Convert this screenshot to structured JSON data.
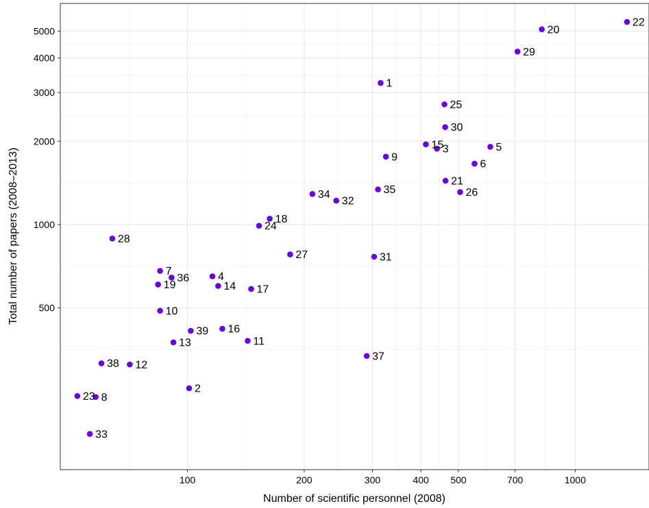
{
  "chart_data": {
    "type": "scatter",
    "title": "",
    "xlabel": "Number of scientific personnel (2008)",
    "ylabel": "Total number of papers (2008–2013)",
    "x_scale": "log",
    "y_scale": "log",
    "xlim": [
      47,
      1550
    ],
    "ylim": [
      130,
      6300
    ],
    "x_ticks": [
      100,
      200,
      300,
      400,
      500,
      700,
      1000
    ],
    "y_ticks": [
      500,
      1000,
      2000,
      3000,
      4000,
      5000
    ],
    "grid": true,
    "point_color": "#6A00E8",
    "points": [
      {
        "label": "1",
        "x": 315,
        "y": 3250
      },
      {
        "label": "2",
        "x": 101,
        "y": 256
      },
      {
        "label": "3",
        "x": 440,
        "y": 1880
      },
      {
        "label": "4",
        "x": 116,
        "y": 650
      },
      {
        "label": "5",
        "x": 604,
        "y": 1910
      },
      {
        "label": "6",
        "x": 550,
        "y": 1660
      },
      {
        "label": "7",
        "x": 85,
        "y": 680
      },
      {
        "label": "8",
        "x": 58,
        "y": 238
      },
      {
        "label": "9",
        "x": 325,
        "y": 1760
      },
      {
        "label": "10",
        "x": 85,
        "y": 488
      },
      {
        "label": "11",
        "x": 143,
        "y": 380
      },
      {
        "label": "12",
        "x": 71,
        "y": 312
      },
      {
        "label": "13",
        "x": 92,
        "y": 375
      },
      {
        "label": "14",
        "x": 120,
        "y": 600
      },
      {
        "label": "15",
        "x": 412,
        "y": 1950
      },
      {
        "label": "16",
        "x": 123,
        "y": 420
      },
      {
        "label": "17",
        "x": 146,
        "y": 585
      },
      {
        "label": "18",
        "x": 163,
        "y": 1050
      },
      {
        "label": "19",
        "x": 84,
        "y": 607
      },
      {
        "label": "20",
        "x": 820,
        "y": 5080
      },
      {
        "label": "21",
        "x": 463,
        "y": 1440
      },
      {
        "label": "22",
        "x": 1360,
        "y": 5400
      },
      {
        "label": "23",
        "x": 52,
        "y": 240
      },
      {
        "label": "24",
        "x": 153,
        "y": 990
      },
      {
        "label": "25",
        "x": 460,
        "y": 2720
      },
      {
        "label": "26",
        "x": 505,
        "y": 1310
      },
      {
        "label": "27",
        "x": 184,
        "y": 780
      },
      {
        "label": "28",
        "x": 64,
        "y": 890
      },
      {
        "label": "29",
        "x": 710,
        "y": 4220
      },
      {
        "label": "30",
        "x": 462,
        "y": 2250
      },
      {
        "label": "31",
        "x": 303,
        "y": 765
      },
      {
        "label": "32",
        "x": 242,
        "y": 1220
      },
      {
        "label": "33",
        "x": 56,
        "y": 175
      },
      {
        "label": "34",
        "x": 210,
        "y": 1290
      },
      {
        "label": "35",
        "x": 310,
        "y": 1340
      },
      {
        "label": "36",
        "x": 91,
        "y": 643
      },
      {
        "label": "37",
        "x": 290,
        "y": 335
      },
      {
        "label": "38",
        "x": 60,
        "y": 315
      },
      {
        "label": "39",
        "x": 102,
        "y": 413
      }
    ]
  }
}
